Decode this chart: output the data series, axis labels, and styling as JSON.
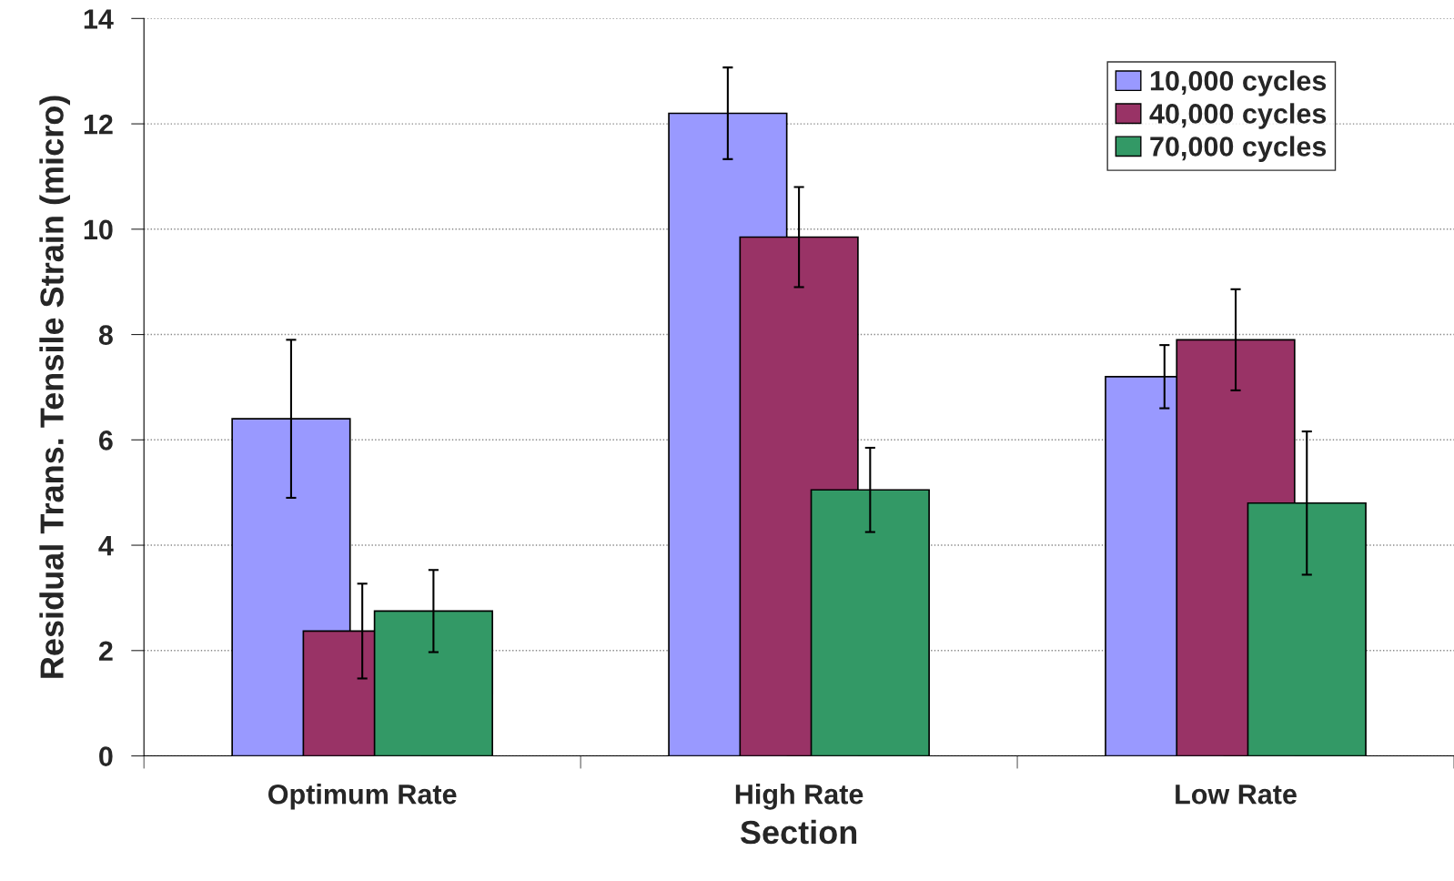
{
  "chart_data": {
    "type": "bar",
    "xlabel": "Section",
    "ylabel": "Residual Trans. Tensile Strain (micro)",
    "categories": [
      "Optimum Rate",
      "High Rate",
      "Low Rate"
    ],
    "series": [
      {
        "name": "10,000 cycles",
        "color": "#9999ff",
        "values": [
          6.4,
          12.2,
          7.2
        ],
        "errors": [
          1.5,
          0.87,
          0.6
        ]
      },
      {
        "name": "40,000 cycles",
        "color": "#993366",
        "values": [
          2.37,
          9.85,
          7.9
        ],
        "errors": [
          0.9,
          0.95,
          0.96
        ]
      },
      {
        "name": "70,000 cycles",
        "color": "#339966",
        "values": [
          2.75,
          5.05,
          4.8
        ],
        "errors": [
          0.78,
          0.8,
          1.36
        ]
      }
    ],
    "ylim": [
      0,
      14
    ],
    "yticks": [
      0,
      2,
      4,
      6,
      8,
      10,
      12,
      14
    ],
    "grid": "y",
    "legend": "top right"
  }
}
